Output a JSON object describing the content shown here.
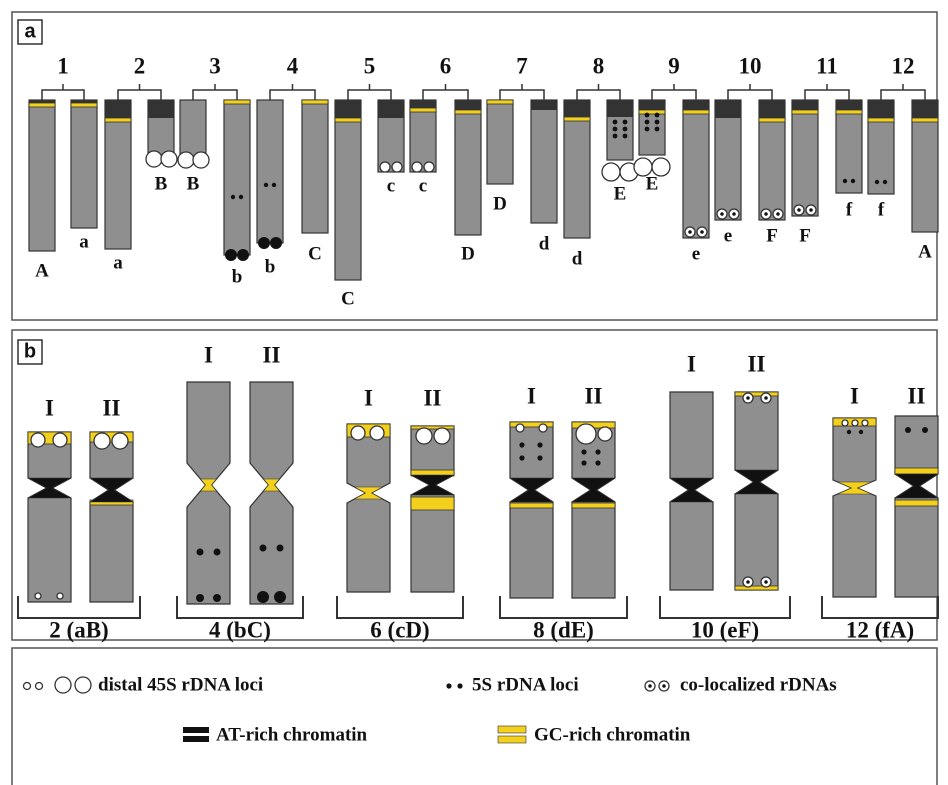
{
  "panel_a": {
    "label": "a",
    "pairs": [
      {
        "number": "1",
        "chromosomes": [
          "A",
          "a"
        ]
      },
      {
        "number": "2",
        "chromosomes": [
          "a",
          "B"
        ]
      },
      {
        "number": "3",
        "chromosomes": [
          "B",
          "b"
        ]
      },
      {
        "number": "4",
        "chromosomes": [
          "b",
          "C"
        ]
      },
      {
        "number": "5",
        "chromosomes": [
          "C",
          "c"
        ]
      },
      {
        "number": "6",
        "chromosomes": [
          "c",
          "D"
        ]
      },
      {
        "number": "7",
        "chromosomes": [
          "D",
          "d"
        ]
      },
      {
        "number": "8",
        "chromosomes": [
          "d",
          "E"
        ]
      },
      {
        "number": "9",
        "chromosomes": [
          "E",
          "e"
        ]
      },
      {
        "number": "10",
        "chromosomes": [
          "e",
          "F"
        ]
      },
      {
        "number": "11",
        "chromosomes": [
          "F",
          "f"
        ]
      },
      {
        "number": "12",
        "chromosomes": [
          "f",
          "A"
        ]
      }
    ]
  },
  "panel_b": {
    "label": "b",
    "groups": [
      {
        "homologs": [
          "I",
          "II"
        ],
        "caption": "2 (aB)"
      },
      {
        "homologs": [
          "I",
          "II"
        ],
        "caption": "4 (bC)"
      },
      {
        "homologs": [
          "I",
          "II"
        ],
        "caption": "6 (cD)"
      },
      {
        "homologs": [
          "I",
          "II"
        ],
        "caption": "8 (dE)"
      },
      {
        "homologs": [
          "I",
          "II"
        ],
        "caption": "10 (eF)"
      },
      {
        "homologs": [
          "I",
          "II"
        ],
        "caption": "12 (fA)"
      }
    ]
  },
  "legend": {
    "items": [
      "distal 45S rDNA loci",
      "5S rDNA loci",
      "co-localized rDNAs",
      "AT-rich chromatin",
      "GC-rich chromatin"
    ]
  }
}
